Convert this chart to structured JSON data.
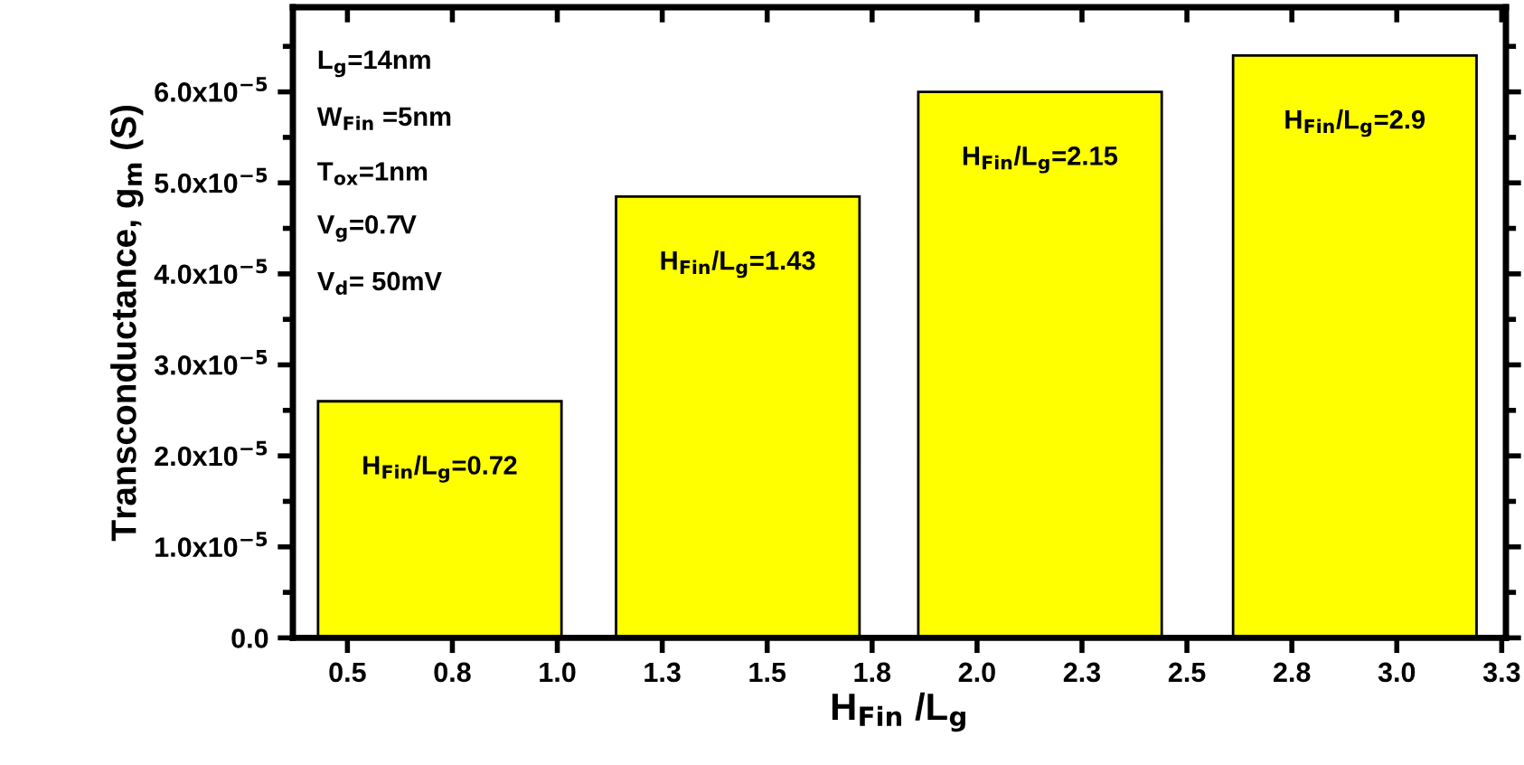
{
  "chart_data": {
    "type": "bar",
    "xlabel": "H$_{Fin}$ /L$_{g}$",
    "ylabel": "Transconductance, g$_{m}$ (S)",
    "x": [
      0.72,
      1.43,
      2.15,
      2.9
    ],
    "values": [
      2.6e-05,
      4.85e-05,
      6e-05,
      6.4e-05
    ],
    "color": "#ffff00",
    "xlim": [
      0.37,
      3.26
    ],
    "ylim": [
      0,
      6.93e-05
    ],
    "xticks": [
      0.5,
      {
        "value": 0.75,
        "label": "0.8"
      },
      {
        "value": 1,
        "label": "1.0"
      },
      {
        "value": 1.25,
        "label": "1.3"
      },
      1.5,
      {
        "value": 1.75,
        "label": "1.8"
      },
      {
        "value": 2,
        "label": "2.0"
      },
      {
        "value": 2.25,
        "label": "2.3"
      },
      2.5,
      {
        "value": 2.75,
        "label": "2.8"
      },
      {
        "value": 3,
        "label": "3.0"
      },
      {
        "value": 3.25,
        "label": "3.3"
      }
    ],
    "yticks": [
      {
        "value": 0,
        "label": "0.0"
      },
      {
        "value": 1e-05,
        "label": "1.0x10$^{−5}$"
      },
      {
        "value": 2e-05,
        "label": "2.0x10$^{−5}$"
      },
      {
        "value": 3e-05,
        "label": "3.0x10$^{−5}$"
      },
      {
        "value": 4e-05,
        "label": "4.0x10$^{−5}$"
      },
      {
        "value": 5e-05,
        "label": "5.0x10$^{−5}$"
      },
      {
        "value": 6e-05,
        "label": "6.0x10$^{−5}$"
      }
    ],
    "grid": false,
    "legend": false,
    "annotations": [
      "L$_{g}$=14nm",
      "W$_{Fin}$ =5nm",
      "T$_{ox}$=1nm",
      "V$_{g}$=0.7V",
      "V$_{d}$= 50mV",
      {
        "text": "H$_{Fin}$/L$_{g}$=0.72",
        "x": 0.72,
        "y": 2.6e-05
      },
      {
        "text": "H$_{Fin}$/L$_{g}$=1.43",
        "x": 1.43,
        "y": 4.85e-05
      },
      {
        "text": "H$_{Fin}$/L$_{g}$=2.15",
        "x": 2.15,
        "y": 6e-05
      },
      {
        "text": "H$_{Fin}$/L$_{g}$=2.9",
        "x": 2.9,
        "y": 6.4e-05
      }
    ]
  }
}
